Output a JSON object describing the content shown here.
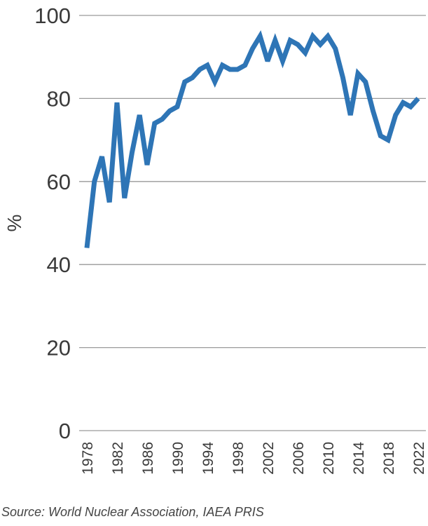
{
  "chart_data": {
    "type": "line",
    "title": "",
    "xlabel": "",
    "ylabel": "%",
    "ylim": [
      0,
      100
    ],
    "yticks": [
      0,
      20,
      40,
      60,
      80,
      100
    ],
    "xticks": [
      1978,
      1982,
      1986,
      1990,
      1994,
      1998,
      2002,
      2006,
      2010,
      2014,
      2018,
      2022
    ],
    "x": [
      1978,
      1979,
      1980,
      1981,
      1982,
      1983,
      1984,
      1985,
      1986,
      1987,
      1988,
      1989,
      1990,
      1991,
      1992,
      1993,
      1994,
      1995,
      1996,
      1997,
      1998,
      1999,
      2000,
      2001,
      2002,
      2003,
      2004,
      2005,
      2006,
      2007,
      2008,
      2009,
      2010,
      2011,
      2012,
      2013,
      2014,
      2015,
      2016,
      2017,
      2018,
      2019,
      2020,
      2021,
      2022
    ],
    "series": [
      {
        "values": [
          44,
          60,
          66,
          55,
          79,
          56,
          67,
          76,
          64,
          74,
          75,
          77,
          78,
          84,
          85,
          87,
          88,
          84,
          88,
          87,
          87,
          88,
          92,
          95,
          89,
          94,
          89,
          94,
          93,
          91,
          95,
          93,
          95,
          92,
          85,
          76,
          86,
          84,
          77,
          71,
          70,
          76,
          79,
          78,
          80
        ],
        "color": "#2e75b6"
      }
    ],
    "grid": true,
    "legend": "none",
    "source": "Source: World Nuclear Association, IAEA PRIS"
  }
}
